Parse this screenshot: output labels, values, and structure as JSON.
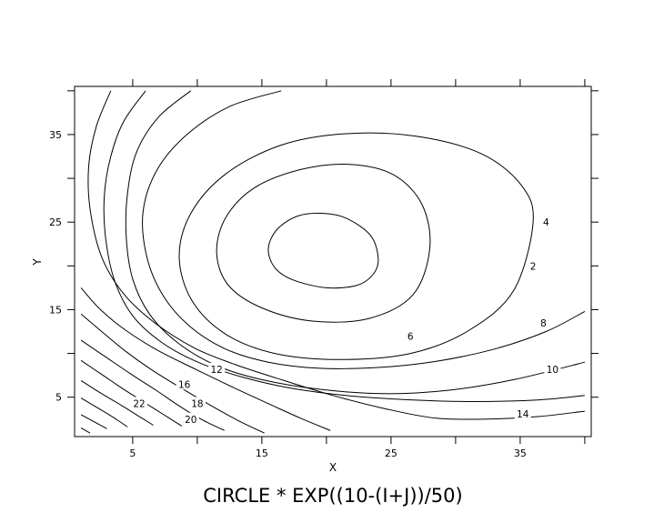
{
  "chart_data": {
    "type": "contour",
    "title": "CIRCLE * EXP((10-(I+J))/50)",
    "xlabel": "X",
    "ylabel": "Y",
    "xlim": [
      0.5,
      40.5
    ],
    "ylim": [
      0.5,
      40.5
    ],
    "x_ticks": [
      5,
      15,
      25,
      35
    ],
    "x_minor_ticks": [
      10,
      20,
      30,
      40
    ],
    "y_ticks": [
      5,
      15,
      25,
      35
    ],
    "y_minor_ticks": [
      10,
      20,
      30,
      40
    ],
    "grid": false,
    "levels": [
      2,
      4,
      6,
      8,
      10,
      12,
      14,
      16,
      18,
      20,
      22
    ],
    "contours": [
      {
        "level": 2,
        "closed": true,
        "label_at": [
          36,
          20
        ],
        "points": [
          [
            24,
            21
          ],
          [
            23.4,
            23.5
          ],
          [
            21.6,
            25.4
          ],
          [
            19.8,
            26
          ],
          [
            17.8,
            25.7
          ],
          [
            16.2,
            24.2
          ],
          [
            15.5,
            22
          ],
          [
            16,
            19.8
          ],
          [
            17.4,
            18.4
          ],
          [
            20,
            17.5
          ],
          [
            22.4,
            17.8
          ],
          [
            23.7,
            19.2
          ],
          [
            24,
            21
          ]
        ]
      },
      {
        "level": 4,
        "closed": true,
        "label_at": [
          37,
          25
        ],
        "points": [
          [
            28,
            22
          ],
          [
            27.4,
            27
          ],
          [
            25.2,
            30.4
          ],
          [
            21.8,
            31.6
          ],
          [
            18,
            31
          ],
          [
            14.4,
            28.9
          ],
          [
            12.2,
            25.5
          ],
          [
            11.5,
            21.5
          ],
          [
            12.4,
            17.8
          ],
          [
            15,
            15.2
          ],
          [
            18.9,
            13.7
          ],
          [
            23.3,
            14
          ],
          [
            26.7,
            16.7
          ],
          [
            28,
            22
          ]
        ]
      },
      {
        "level": 6,
        "closed": true,
        "label_at": [
          26.5,
          12
        ],
        "points": [
          [
            36,
            25
          ],
          [
            35.1,
            29.2
          ],
          [
            32,
            32.8
          ],
          [
            27,
            34.8
          ],
          [
            21.5,
            35.1
          ],
          [
            16.5,
            33.8
          ],
          [
            12.2,
            30.5
          ],
          [
            9.5,
            26
          ],
          [
            8.6,
            21
          ],
          [
            9.6,
            16
          ],
          [
            12.2,
            12.2
          ],
          [
            16,
            10
          ],
          [
            21,
            9.3
          ],
          [
            26.5,
            10
          ],
          [
            31,
            12.6
          ],
          [
            34.5,
            17.2
          ],
          [
            36,
            25
          ]
        ]
      },
      {
        "level": 8,
        "closed": false,
        "label_at": [
          36.8,
          13.5
        ],
        "points": [
          [
            16.5,
            40
          ],
          [
            12.5,
            38.2
          ],
          [
            9.2,
            35
          ],
          [
            6.9,
            31
          ],
          [
            5.8,
            26.2
          ],
          [
            6.1,
            21
          ],
          [
            7.4,
            16.5
          ],
          [
            9.5,
            13
          ],
          [
            12.2,
            10.5
          ],
          [
            15.5,
            9
          ],
          [
            19.5,
            8.3
          ],
          [
            24,
            8.4
          ],
          [
            28.5,
            9.1
          ],
          [
            33,
            10.5
          ],
          [
            37,
            12.5
          ],
          [
            40,
            14.8
          ]
        ]
      },
      {
        "level": 10,
        "closed": false,
        "label_at": [
          37.5,
          8.2
        ],
        "points": [
          [
            9.5,
            40
          ],
          [
            7,
            37
          ],
          [
            5.3,
            33
          ],
          [
            4.6,
            28.3
          ],
          [
            4.5,
            23.3
          ],
          [
            5,
            18.5
          ],
          [
            6.3,
            14.5
          ],
          [
            8.5,
            11.2
          ],
          [
            11.5,
            8.6
          ],
          [
            15,
            7
          ],
          [
            19.5,
            5.9
          ],
          [
            24.5,
            5.4
          ],
          [
            29.5,
            5.8
          ],
          [
            34.5,
            7
          ],
          [
            40,
            9
          ]
        ]
      },
      {
        "level": 12,
        "closed": false,
        "label_at": [
          11.5,
          8.2
        ],
        "points": [
          [
            6,
            40
          ],
          [
            4.3,
            36.5
          ],
          [
            3.3,
            32.5
          ],
          [
            2.8,
            28
          ],
          [
            2.9,
            23.2
          ],
          [
            3.6,
            18.3
          ],
          [
            5,
            14.3
          ],
          [
            7.3,
            11.2
          ],
          [
            10.2,
            8.9
          ],
          [
            13.5,
            7.3
          ],
          [
            17,
            6.1
          ],
          [
            21.5,
            5.2
          ],
          [
            26.5,
            4.7
          ],
          [
            31.5,
            4.5
          ],
          [
            36.5,
            4.7
          ],
          [
            40,
            5.2
          ]
        ]
      },
      {
        "level": 14,
        "closed": false,
        "label_at": [
          35.2,
          3.1
        ],
        "points": [
          [
            3.3,
            40
          ],
          [
            2.2,
            36
          ],
          [
            1.6,
            31.5
          ],
          [
            1.7,
            26.5
          ],
          [
            2.6,
            21
          ],
          [
            4.3,
            16.8
          ],
          [
            6.7,
            13.5
          ],
          [
            9.8,
            10.6
          ],
          [
            13,
            8.7
          ],
          [
            16.5,
            7
          ],
          [
            20.5,
            5.2
          ],
          [
            24.5,
            3.7
          ],
          [
            28.5,
            2.6
          ],
          [
            32.5,
            2.5
          ],
          [
            36.5,
            2.8
          ],
          [
            40,
            3.4
          ]
        ]
      },
      {
        "level": 16,
        "closed": false,
        "label_at": [
          9,
          6.5
        ],
        "points": [
          [
            1,
            17.5
          ],
          [
            2.5,
            15
          ],
          [
            4.5,
            12.6
          ],
          [
            7,
            10.3
          ],
          [
            10,
            8.1
          ],
          [
            12.8,
            6.1
          ],
          [
            15.6,
            4.2
          ],
          [
            18,
            2.6
          ],
          [
            20.3,
            1.2
          ]
        ]
      },
      {
        "level": 18,
        "closed": false,
        "label_at": [
          10,
          4.3
        ],
        "points": [
          [
            1,
            14.5
          ],
          [
            2.6,
            12.5
          ],
          [
            4.4,
            10.3
          ],
          [
            6.5,
            8.1
          ],
          [
            8.8,
            6
          ],
          [
            11,
            4.1
          ],
          [
            13.2,
            2.3
          ],
          [
            15.2,
            0.9
          ]
        ]
      },
      {
        "level": 20,
        "closed": false,
        "label_at": [
          9.5,
          2.5
        ],
        "points": [
          [
            1,
            11.5
          ],
          [
            2.8,
            9.7
          ],
          [
            4.8,
            7.7
          ],
          [
            6.8,
            5.8
          ],
          [
            8.6,
            4
          ],
          [
            10.4,
            2.4
          ],
          [
            12.1,
            1.2
          ]
        ]
      },
      {
        "level": 22,
        "closed": false,
        "label_at": [
          5.5,
          4.3
        ],
        "points": [
          [
            1,
            9.2
          ],
          [
            2.5,
            7.7
          ],
          [
            4.2,
            6
          ],
          [
            5.8,
            4.5
          ],
          [
            7.3,
            3.1
          ],
          [
            8.8,
            1.7
          ]
        ]
      },
      {
        "level": null,
        "closed": false,
        "label_at": null,
        "points": [
          [
            1,
            6.9
          ],
          [
            2.6,
            5.4
          ],
          [
            4.2,
            4
          ],
          [
            5.5,
            2.8
          ],
          [
            6.6,
            1.8
          ]
        ]
      },
      {
        "level": null,
        "closed": false,
        "label_at": null,
        "points": [
          [
            1,
            4.9
          ],
          [
            2.5,
            3.6
          ],
          [
            3.6,
            2.6
          ],
          [
            4.6,
            1.6
          ]
        ]
      },
      {
        "level": null,
        "closed": false,
        "label_at": null,
        "points": [
          [
            1,
            3
          ],
          [
            2,
            2.2
          ],
          [
            3,
            1.4
          ]
        ]
      },
      {
        "level": null,
        "closed": false,
        "label_at": null,
        "points": [
          [
            1,
            1.5
          ],
          [
            1.7,
            0.9
          ]
        ]
      }
    ]
  }
}
